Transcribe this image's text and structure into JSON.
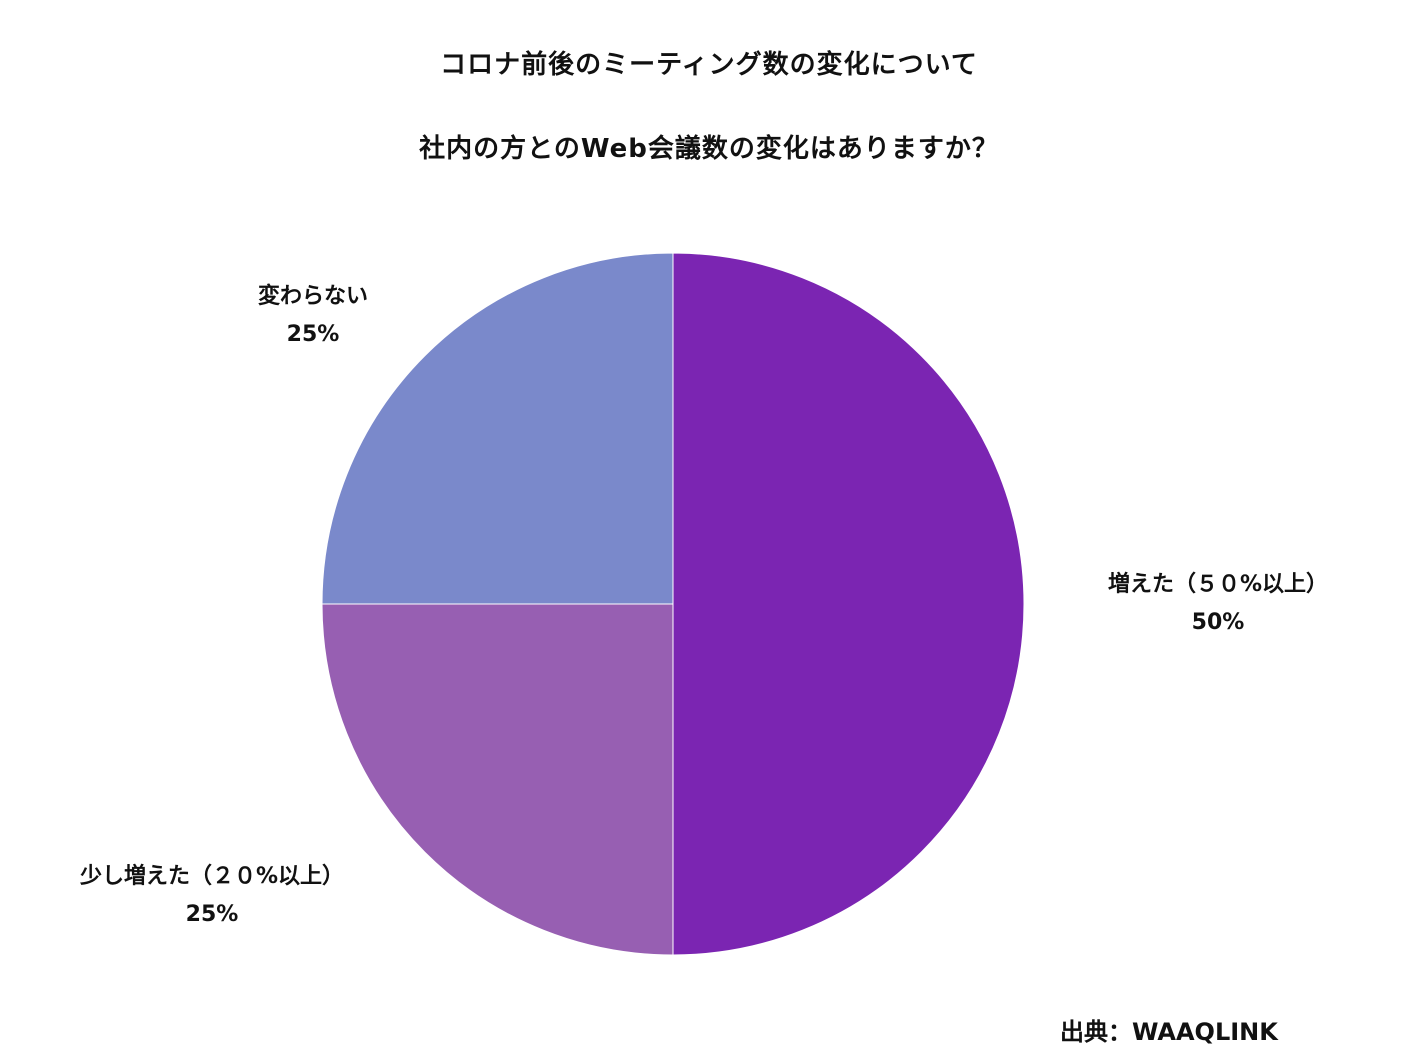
{
  "chart_data": {
    "type": "pie",
    "title": "コロナ前後のミーティング数の変化について",
    "subtitle": "社内の方とのWeb会議数の変化はありますか？",
    "categories": [
      "増えた（５０%以上）",
      "少し増えた（２０%以上）",
      "変わらない"
    ],
    "values": [
      50,
      25,
      25
    ],
    "value_labels": [
      "50%",
      "25%",
      "25%"
    ],
    "colors": [
      "#7B25B2",
      "#975FB2",
      "#7A89CB"
    ],
    "start_angle_deg": 0,
    "direction": "clockwise",
    "legend": "none",
    "source": "出典：WAAQLINK"
  },
  "header": {
    "title": "コロナ前後のミーティング数の変化について",
    "subtitle": "社内の方とのWeb会議数の変化はありますか？"
  },
  "labels": [
    {
      "name": "増えた（５０%以上）",
      "value": "50%"
    },
    {
      "name": "少し増えた（２０%以上）",
      "value": "25%"
    },
    {
      "name": "変わらない",
      "value": "25%"
    }
  ],
  "footer": {
    "source": "出典：WAAQLINK"
  }
}
